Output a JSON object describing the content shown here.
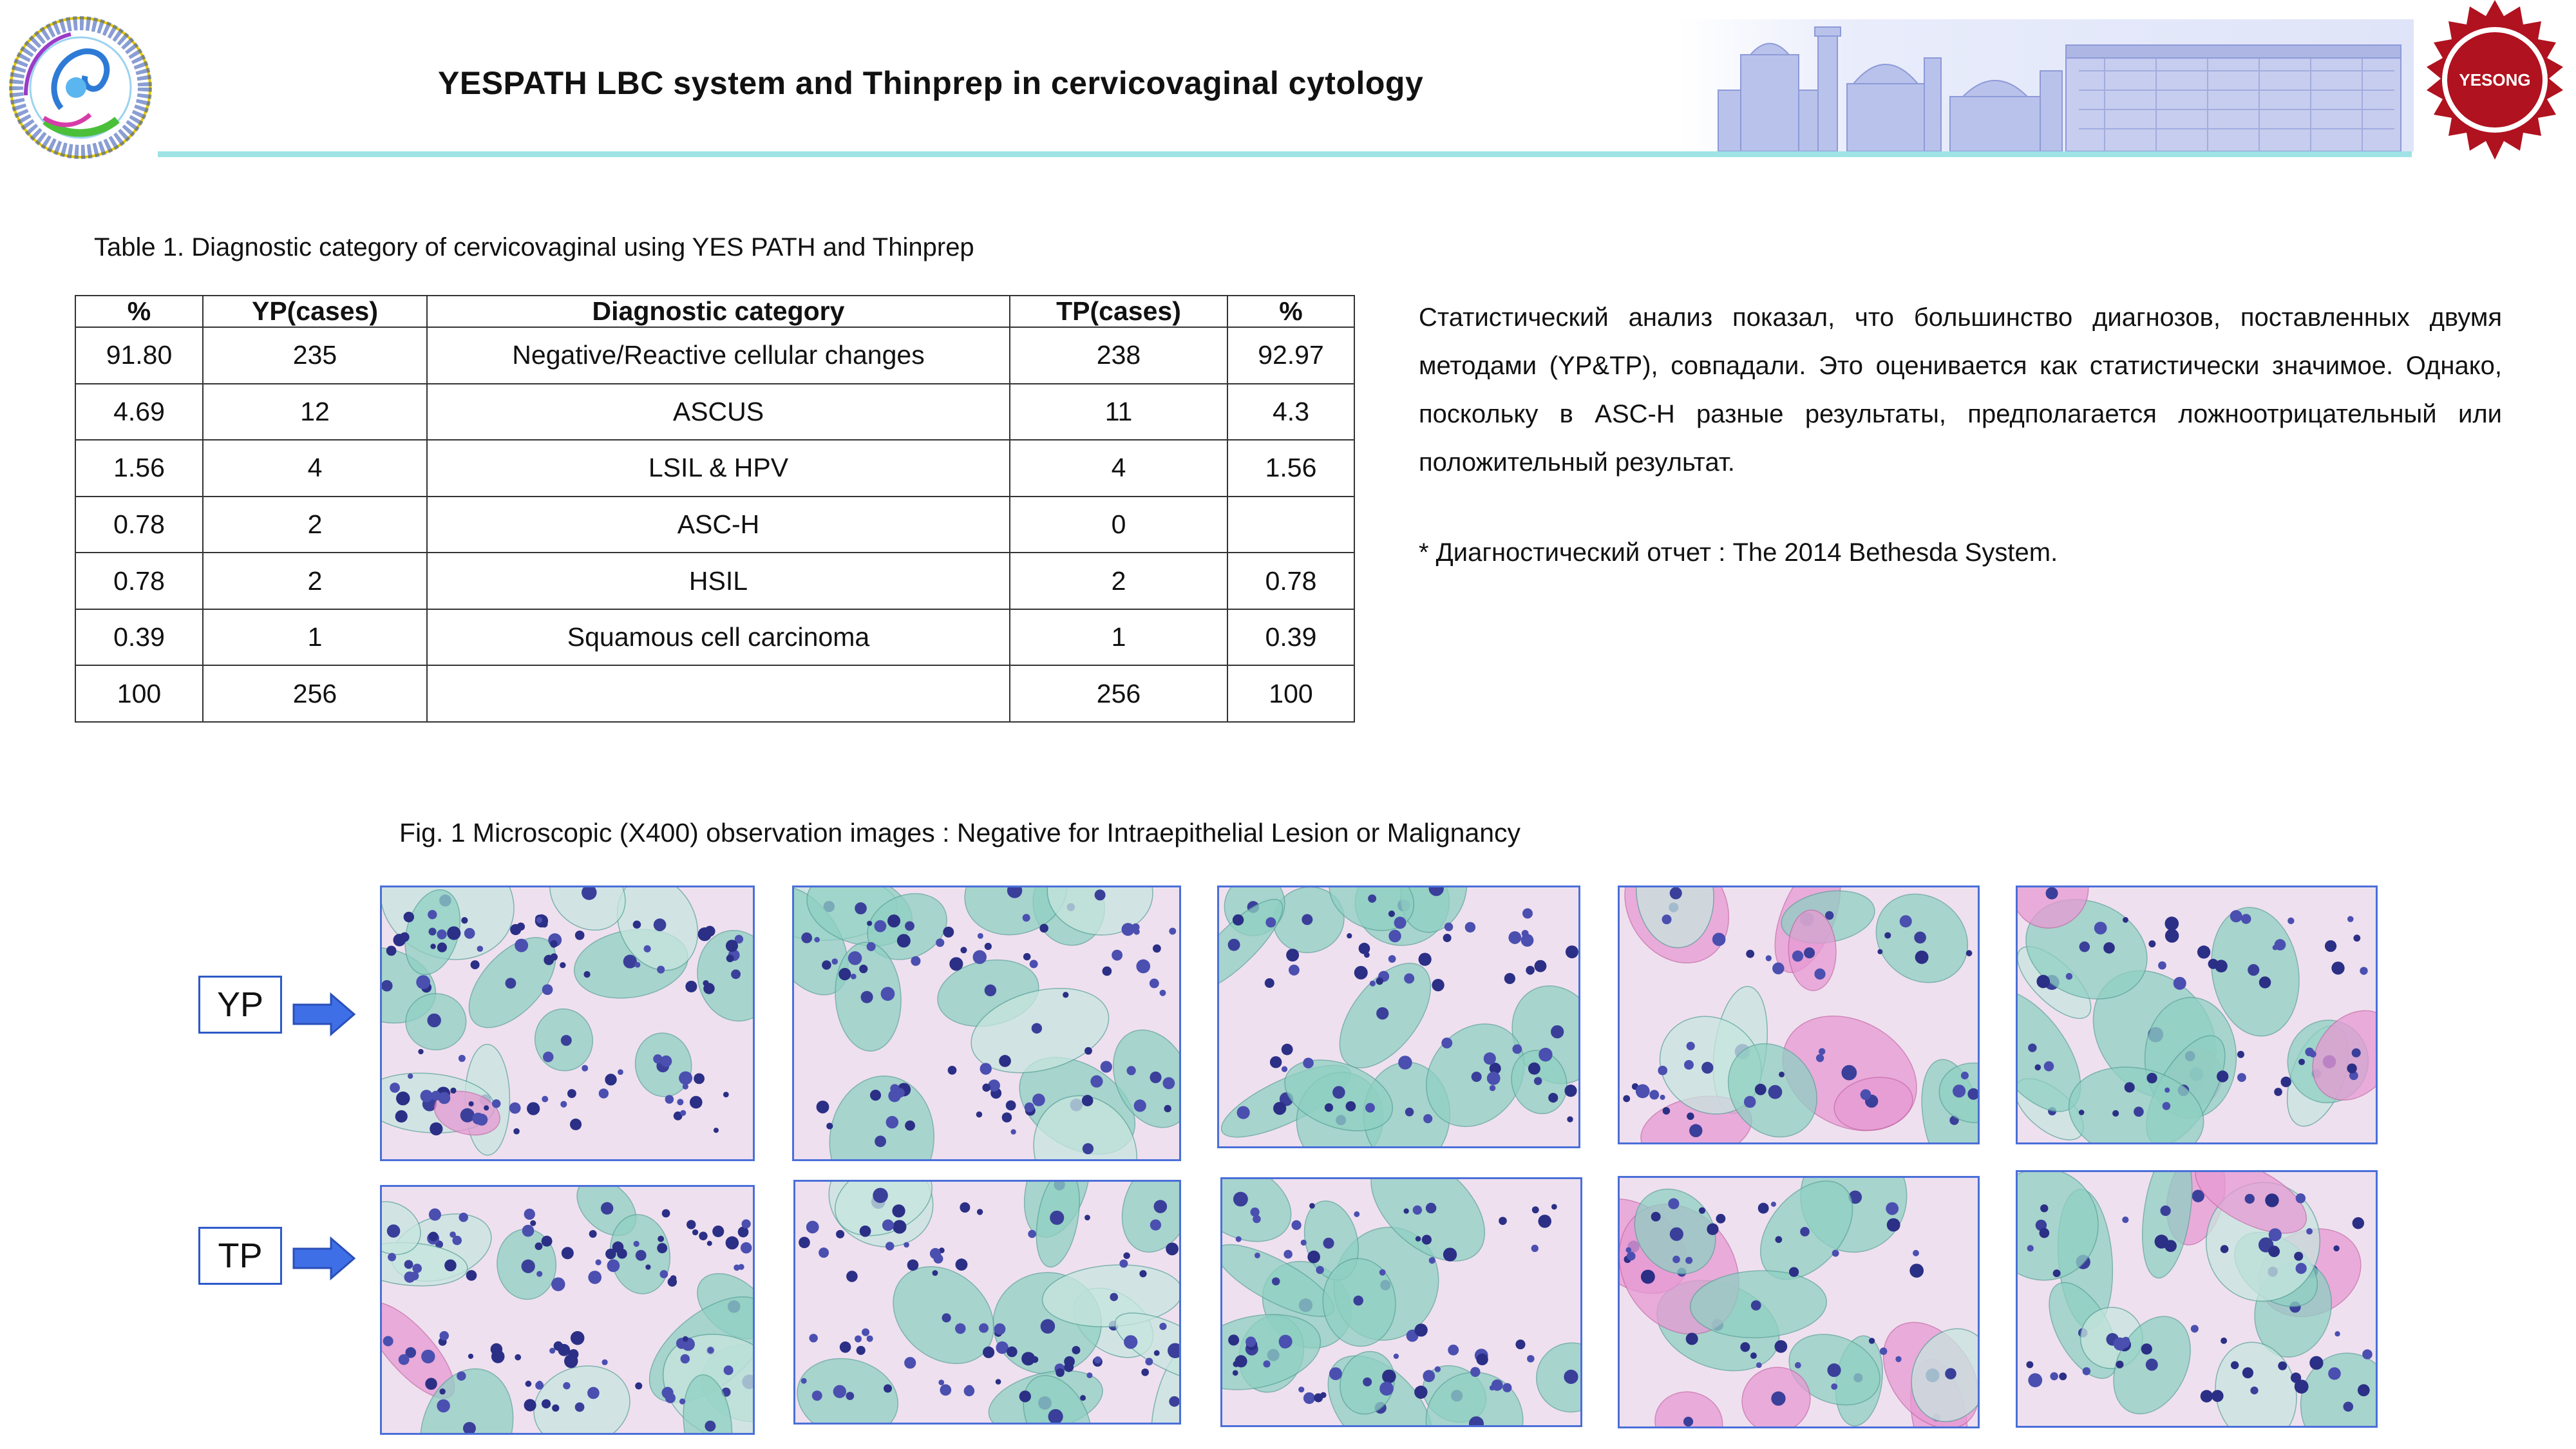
{
  "header": {
    "title": "YESPATH LBC system and Thinprep in cervicovaginal cytology",
    "right_logo_text": "YESONG",
    "colors": {
      "accent_line": "#9fe3e6",
      "logo_red": "#b0121f",
      "frame_blue": "#4a6fd8"
    }
  },
  "table": {
    "caption": "Table 1. Diagnostic category of cervicovaginal using YES PATH and Thinprep",
    "headers": [
      "%",
      "YP(cases)",
      "Diagnostic category",
      "TP(cases)",
      "%"
    ],
    "rows": [
      [
        "91.80",
        "235",
        "Negative/Reactive cellular changes",
        "238",
        "92.97"
      ],
      [
        "4.69",
        "12",
        "ASCUS",
        "11",
        "4.3"
      ],
      [
        "1.56",
        "4",
        "LSIL & HPV",
        "4",
        "1.56"
      ],
      [
        "0.78",
        "2",
        "ASC-H",
        "0",
        ""
      ],
      [
        "0.78",
        "2",
        "HSIL",
        "2",
        "0.78"
      ],
      [
        "0.39",
        "1",
        "Squamous cell carcinoma",
        "1",
        "0.39"
      ],
      [
        "100",
        "256",
        "",
        "256",
        "100"
      ]
    ]
  },
  "text": {
    "stat_analysis": "Статистический анализ показал, что большинство диагнозов, поставленных двумя методами (YP&TP), совпадали. Это оценивается как статистически значимое. Однако, поскольку в ASC-H разные результаты, предполагается ложноотрицательный или положительный результат.",
    "footnote": "* Диагностический отчет : The 2014 Bethesda System."
  },
  "figure": {
    "caption": "Fig. 1 Microscopic (X400) observation images : Negative for Intraepithelial Lesion or Malignancy",
    "row_labels": {
      "yp": "YP",
      "tp": "TP"
    }
  }
}
